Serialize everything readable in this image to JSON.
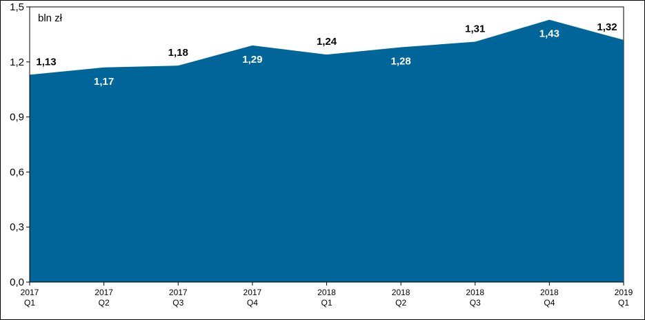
{
  "chart_data": {
    "type": "area",
    "unit_label": "bln zł",
    "categories": [
      [
        "2017",
        "Q1"
      ],
      [
        "2017",
        "Q2"
      ],
      [
        "2017",
        "Q3"
      ],
      [
        "2017",
        "Q4"
      ],
      [
        "2018",
        "Q1"
      ],
      [
        "2018",
        "Q2"
      ],
      [
        "2018",
        "Q3"
      ],
      [
        "2018",
        "Q4"
      ],
      [
        "2019",
        "Q1"
      ]
    ],
    "series": [
      {
        "values": [
          1.13,
          1.17,
          1.18,
          1.29,
          1.24,
          1.28,
          1.31,
          1.43,
          1.32
        ],
        "labels": [
          "1,13",
          "1,17",
          "1,18",
          "1,29",
          "1,24",
          "1,28",
          "1,31",
          "1,43",
          "1,32"
        ],
        "color": "#006699"
      }
    ],
    "ylim": [
      0,
      1.5
    ],
    "y_ticks": [
      {
        "value": 0.0,
        "label": "0,0"
      },
      {
        "value": 0.3,
        "label": "0,3"
      },
      {
        "value": 0.6,
        "label": "0,6"
      },
      {
        "value": 0.9,
        "label": "0,9"
      },
      {
        "value": 1.2,
        "label": "1,2"
      },
      {
        "value": 1.5,
        "label": "1,5"
      }
    ],
    "grid": false,
    "legend": "none",
    "label_positions": [
      "above",
      "inside",
      "above",
      "inside",
      "above",
      "inside",
      "above",
      "inside",
      "above"
    ],
    "label_colors": {
      "above": "#000000",
      "inside": "#ffffff"
    }
  }
}
